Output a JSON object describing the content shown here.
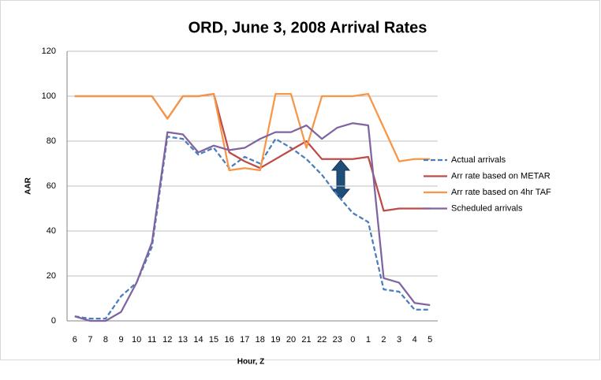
{
  "chart_data": {
    "type": "line",
    "title": "ORD, June 3, 2008 Arrival Rates",
    "x_label": "Hour, Z",
    "y_label": "AAR",
    "categories": [
      "6",
      "7",
      "8",
      "9",
      "10",
      "11",
      "12",
      "13",
      "14",
      "15",
      "16",
      "17",
      "18",
      "19",
      "20",
      "21",
      "22",
      "23",
      "0",
      "1",
      "2",
      "3",
      "4",
      "5"
    ],
    "series": [
      {
        "name": "Actual arrivals",
        "color": "#4a7ebb",
        "dashed": true,
        "values": [
          2,
          1,
          1,
          11,
          17,
          33,
          82,
          81,
          74,
          77,
          68,
          73,
          70,
          81,
          77,
          72,
          65,
          56,
          48,
          44,
          14,
          13,
          5,
          5
        ]
      },
      {
        "name": "Arr rate based on METAR",
        "color": "#be4b48",
        "values": [
          100,
          100,
          100,
          100,
          100,
          100,
          90,
          100,
          100,
          101,
          75,
          71,
          68,
          72,
          76,
          80,
          72,
          72,
          72,
          73,
          49,
          50,
          50,
          50
        ]
      },
      {
        "name": "Arr rate based on 4hr TAF",
        "color": "#f79646",
        "values": [
          100,
          100,
          100,
          100,
          100,
          100,
          90,
          100,
          100,
          101,
          67,
          68,
          67,
          101,
          101,
          77,
          100,
          100,
          100,
          101,
          86,
          71,
          72,
          72
        ]
      },
      {
        "name": "Scheduled arrivals",
        "color": "#8064a2",
        "values": [
          2,
          0,
          0,
          4,
          17,
          35,
          84,
          83,
          75,
          78,
          76,
          77,
          81,
          84,
          84,
          87,
          81,
          86,
          88,
          87,
          19,
          17,
          8,
          7
        ]
      }
    ],
    "ylim": [
      0,
      120
    ],
    "yticks": [
      0,
      20,
      40,
      60,
      80,
      100,
      120
    ],
    "grid": true,
    "legend": "right"
  }
}
